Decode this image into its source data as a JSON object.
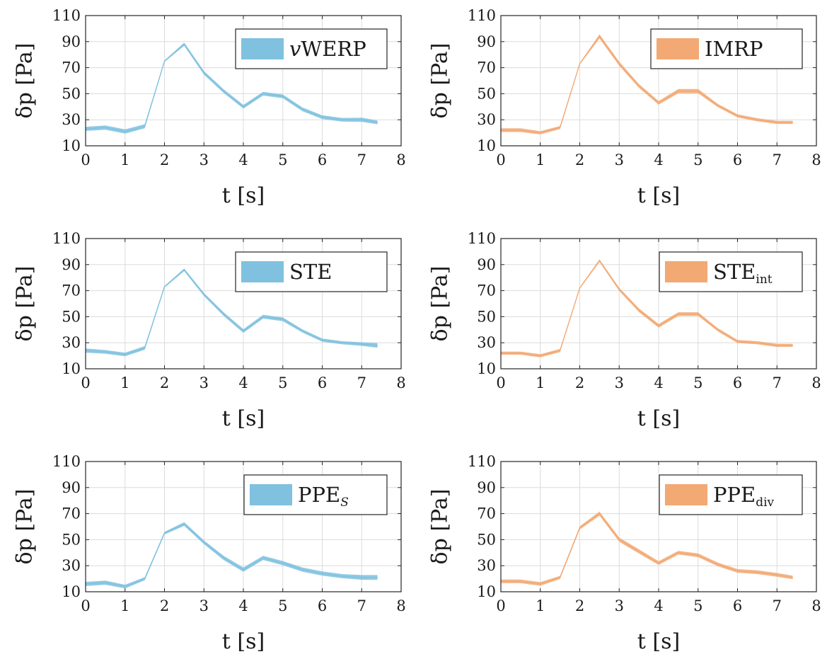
{
  "chart_data": [
    {
      "type": "area",
      "xlabel": "t [s]",
      "ylabel": "δp [Pa]",
      "xlim": [
        0,
        8
      ],
      "ylim": [
        10,
        110
      ],
      "xticks": [
        "0",
        "1",
        "2",
        "3",
        "4",
        "5",
        "6",
        "7",
        "8"
      ],
      "yticks": [
        "10",
        "30",
        "50",
        "70",
        "90",
        "110"
      ],
      "grid": true,
      "legend": {
        "position": "top-right",
        "label": "vWERP",
        "label_italic_prefix": "v",
        "label_main": "WERP",
        "label_sub": "",
        "sub_italic": false
      },
      "color": "#7fc1df",
      "x": [
        0,
        0.5,
        1,
        1.5,
        2,
        2.5,
        3,
        3.5,
        4,
        4.5,
        5,
        5.5,
        6,
        6.5,
        7,
        7.4
      ],
      "y": [
        23,
        24,
        21,
        25,
        75,
        88,
        66,
        52,
        40,
        50,
        48,
        38,
        32,
        30,
        30,
        28
      ],
      "band": [
        1.6,
        1.6,
        1.6,
        1.6,
        0.6,
        1.2,
        1.4,
        1.4,
        1.4,
        1.4,
        1.4,
        1.4,
        1.4,
        1.4,
        1.6,
        1.4
      ]
    },
    {
      "type": "area",
      "xlabel": "t [s]",
      "ylabel": "δp [Pa]",
      "xlim": [
        0,
        8
      ],
      "ylim": [
        10,
        110
      ],
      "xticks": [
        "0",
        "1",
        "2",
        "3",
        "4",
        "5",
        "6",
        "7",
        "8"
      ],
      "yticks": [
        "10",
        "30",
        "50",
        "70",
        "90",
        "110"
      ],
      "grid": true,
      "legend": {
        "position": "top-right",
        "label": "IMRP",
        "label_italic_prefix": "",
        "label_main": "IMRP",
        "label_sub": "",
        "sub_italic": false
      },
      "color": "#f2a974",
      "x": [
        0,
        0.5,
        1,
        1.5,
        2,
        2.5,
        3,
        3.5,
        4,
        4.5,
        5,
        5.5,
        6,
        6.5,
        7,
        7.4
      ],
      "y": [
        22,
        22,
        20,
        24,
        73,
        94,
        73,
        56,
        43,
        52,
        52,
        41,
        33,
        30,
        28,
        28
      ],
      "band": [
        1.4,
        1.4,
        1.2,
        1.2,
        0.6,
        1.6,
        1.6,
        1.4,
        1.4,
        1.6,
        1.6,
        1.2,
        1.2,
        1.2,
        1.2,
        1.2
      ]
    },
    {
      "type": "area",
      "xlabel": "t [s]",
      "ylabel": "δp [Pa]",
      "xlim": [
        0,
        8
      ],
      "ylim": [
        10,
        110
      ],
      "xticks": [
        "0",
        "1",
        "2",
        "3",
        "4",
        "5",
        "6",
        "7",
        "8"
      ],
      "yticks": [
        "10",
        "30",
        "50",
        "70",
        "90",
        "110"
      ],
      "grid": true,
      "legend": {
        "position": "top-right",
        "label": "STE",
        "label_italic_prefix": "",
        "label_main": "STE",
        "label_sub": "",
        "sub_italic": false
      },
      "color": "#7fc1df",
      "x": [
        0,
        0.5,
        1,
        1.5,
        2,
        2.5,
        3,
        3.5,
        4,
        4.5,
        5,
        5.5,
        6,
        6.5,
        7,
        7.4
      ],
      "y": [
        24,
        23,
        21,
        26,
        73,
        86,
        67,
        52,
        39,
        50,
        48,
        39,
        32,
        30,
        29,
        28
      ],
      "band": [
        1.6,
        1.4,
        1.4,
        1.4,
        0.6,
        1.0,
        1.2,
        1.4,
        1.4,
        1.4,
        1.4,
        1.2,
        1.2,
        1.2,
        1.4,
        1.8
      ]
    },
    {
      "type": "area",
      "xlabel": "t [s]",
      "ylabel": "δp [Pa]",
      "xlim": [
        0,
        8
      ],
      "ylim": [
        10,
        110
      ],
      "xticks": [
        "0",
        "1",
        "2",
        "3",
        "4",
        "5",
        "6",
        "7",
        "8"
      ],
      "yticks": [
        "10",
        "30",
        "50",
        "70",
        "90",
        "110"
      ],
      "grid": true,
      "legend": {
        "position": "top-right",
        "label": "STEint",
        "label_italic_prefix": "",
        "label_main": "STE",
        "label_sub": "int",
        "sub_italic": false
      },
      "color": "#f2a974",
      "x": [
        0,
        0.5,
        1,
        1.5,
        2,
        2.5,
        3,
        3.5,
        4,
        4.5,
        5,
        5.5,
        6,
        6.5,
        7,
        7.4
      ],
      "y": [
        22,
        22,
        20,
        24,
        72,
        93,
        71,
        55,
        43,
        52,
        52,
        40,
        31,
        30,
        28,
        28
      ],
      "band": [
        1.2,
        1.2,
        1.2,
        1.2,
        0.6,
        1.0,
        1.2,
        1.4,
        1.4,
        1.4,
        1.4,
        1.2,
        1.2,
        1.2,
        1.2,
        1.2
      ]
    },
    {
      "type": "area",
      "xlabel": "t [s]",
      "ylabel": "δp [Pa]",
      "xlim": [
        0,
        8
      ],
      "ylim": [
        10,
        110
      ],
      "xticks": [
        "0",
        "1",
        "2",
        "3",
        "4",
        "5",
        "6",
        "7",
        "8"
      ],
      "yticks": [
        "10",
        "30",
        "50",
        "70",
        "90",
        "110"
      ],
      "grid": true,
      "legend": {
        "position": "top-right",
        "label": "PPES",
        "label_italic_prefix": "",
        "label_main": "PPE",
        "label_sub": "S",
        "sub_italic": true
      },
      "color": "#7fc1df",
      "x": [
        0,
        0.5,
        1,
        1.5,
        2,
        2.5,
        3,
        3.5,
        4,
        4.5,
        5,
        5.5,
        6,
        6.5,
        7,
        7.4
      ],
      "y": [
        16,
        17,
        14,
        20,
        55,
        62,
        48,
        36,
        27,
        36,
        32,
        27,
        24,
        22,
        21,
        21
      ],
      "band": [
        1.6,
        1.6,
        1.4,
        1.2,
        1.0,
        1.4,
        1.4,
        1.6,
        1.6,
        1.6,
        1.6,
        1.6,
        1.6,
        1.6,
        1.8,
        1.8
      ]
    },
    {
      "type": "area",
      "xlabel": "t [s]",
      "ylabel": "δp [Pa]",
      "xlim": [
        0,
        8
      ],
      "ylim": [
        10,
        110
      ],
      "xticks": [
        "0",
        "1",
        "2",
        "3",
        "4",
        "5",
        "6",
        "7",
        "8"
      ],
      "yticks": [
        "10",
        "30",
        "50",
        "70",
        "90",
        "110"
      ],
      "grid": true,
      "legend": {
        "position": "top-right",
        "label": "PPEdiv",
        "label_italic_prefix": "",
        "label_main": "PPE",
        "label_sub": "div",
        "sub_italic": false
      },
      "color": "#f2a974",
      "x": [
        0,
        0.5,
        1,
        1.5,
        2,
        2.5,
        3,
        3.5,
        4,
        4.5,
        5,
        5.5,
        6,
        6.5,
        7,
        7.4
      ],
      "y": [
        18,
        18,
        16,
        21,
        59,
        70,
        50,
        41,
        32,
        40,
        38,
        31,
        26,
        25,
        23,
        21
      ],
      "band": [
        1.4,
        1.4,
        1.4,
        1.2,
        1.2,
        1.6,
        1.6,
        1.6,
        1.4,
        1.4,
        1.4,
        1.4,
        1.4,
        1.4,
        1.4,
        1.4
      ]
    }
  ]
}
